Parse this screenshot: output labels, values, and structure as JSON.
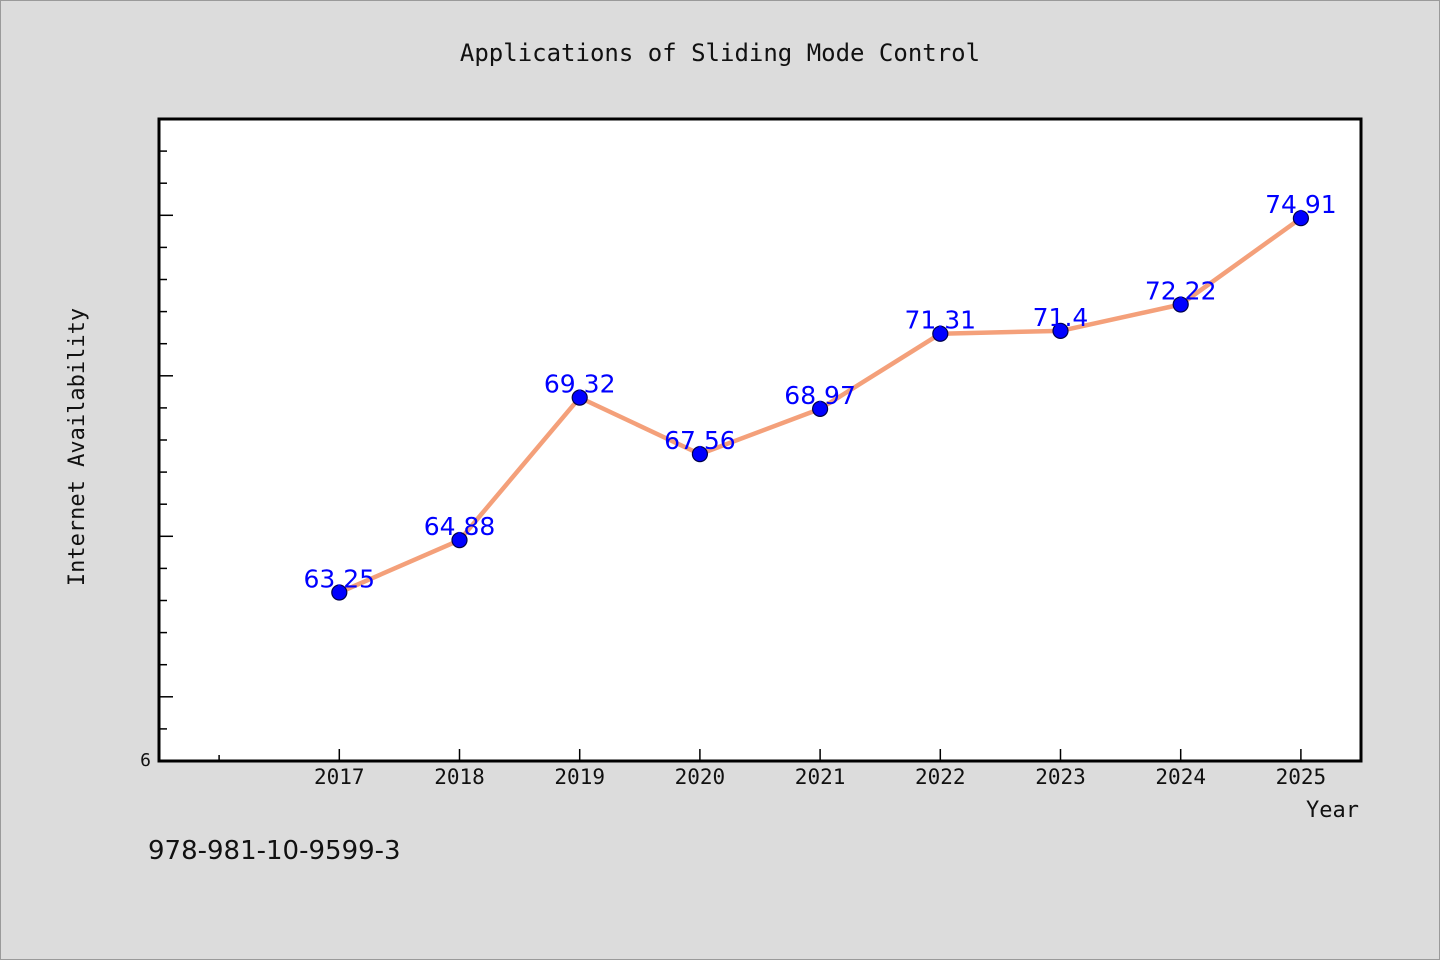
{
  "chart_data": {
    "type": "line",
    "title": "Applications of Sliding Mode Control",
    "xlabel": "Year",
    "ylabel": "Internet Availability",
    "x": [
      "2017",
      "2018",
      "2019",
      "2020",
      "2021",
      "2022",
      "2023",
      "2024",
      "2025"
    ],
    "series": [
      {
        "values": [
          63.25,
          64.88,
          69.32,
          67.56,
          68.97,
          71.31,
          71.4,
          72.22,
          74.91
        ]
      }
    ],
    "data_labels": [
      "63.25",
      "64.88",
      "69.32",
      "67.56",
      "68.97",
      "71.31",
      "71.4",
      "72.22",
      "74.91"
    ],
    "y_tick_labels": [
      "6"
    ],
    "ylim": [
      58,
      78
    ],
    "x_range": [
      2015.5,
      2025.5
    ],
    "grid": false,
    "line_color": "#f4a07a",
    "marker_color": "#0000ff",
    "label_color": "#0000ff",
    "background_color": "#dcdcdc",
    "plot_background": "#ffffff"
  },
  "footer": {
    "isbn": "978-981-10-9599-3"
  }
}
